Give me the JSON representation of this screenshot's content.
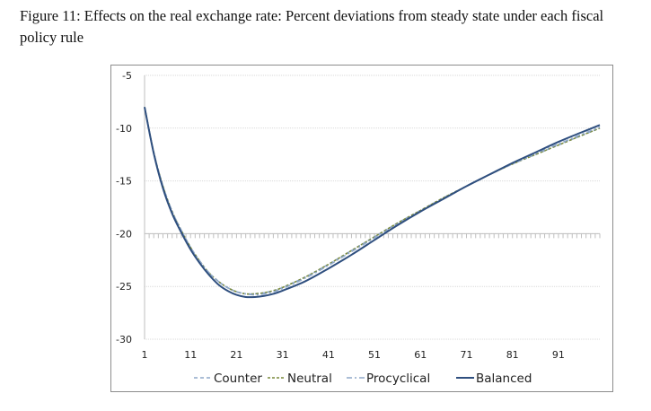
{
  "caption": {
    "line1": "Figure 11: Effects on the real exchange rate: Percent deviations from steady state under each fiscal",
    "line2": "policy rule"
  },
  "chart_data": {
    "type": "line",
    "title": "Effects on the real exchange rate: Percent deviations from steady state under each fiscal policy rule",
    "xlabel": "",
    "ylabel": "",
    "xlim": [
      1,
      100
    ],
    "ylim": [
      -30,
      -5
    ],
    "x_axis_crosses_at": -20,
    "x_ticks": [
      "1",
      "11",
      "21",
      "31",
      "41",
      "51",
      "61",
      "71",
      "81",
      "91"
    ],
    "y_ticks": [
      "-5",
      "-10",
      "-15",
      "-20",
      "-25",
      "-30"
    ],
    "grid": true,
    "legend_position": "bottom",
    "x": [
      1,
      3,
      5,
      7,
      9,
      11,
      13,
      15,
      17,
      19,
      21,
      23,
      25,
      27,
      29,
      31,
      36,
      41,
      46,
      51,
      56,
      61,
      66,
      71,
      76,
      81,
      86,
      91,
      96,
      100
    ],
    "series": [
      {
        "name": "Counter",
        "style": "dashed",
        "color": "#8fa8c8",
        "values": [
          -8.0,
          -12.3,
          -15.5,
          -17.9,
          -19.7,
          -21.3,
          -22.6,
          -23.7,
          -24.5,
          -25.1,
          -25.5,
          -25.7,
          -25.7,
          -25.6,
          -25.4,
          -25.1,
          -24.1,
          -22.9,
          -21.6,
          -20.3,
          -19.0,
          -17.8,
          -16.6,
          -15.5,
          -14.4,
          -13.4,
          -12.5,
          -11.6,
          -10.7,
          -10.0
        ]
      },
      {
        "name": "Neutral",
        "style": "dotted-dash",
        "color": "#7a8a3c",
        "values": [
          -8.0,
          -12.3,
          -15.5,
          -17.9,
          -19.7,
          -21.3,
          -22.6,
          -23.7,
          -24.5,
          -25.1,
          -25.5,
          -25.7,
          -25.7,
          -25.6,
          -25.4,
          -25.1,
          -24.1,
          -22.9,
          -21.6,
          -20.3,
          -19.0,
          -17.8,
          -16.6,
          -15.5,
          -14.4,
          -13.4,
          -12.5,
          -11.6,
          -10.7,
          -10.0
        ]
      },
      {
        "name": "Procyclical",
        "style": "dash-dot",
        "color": "#8fa8c8",
        "values": [
          -8.0,
          -12.3,
          -15.5,
          -17.9,
          -19.7,
          -21.3,
          -22.6,
          -23.7,
          -24.5,
          -25.1,
          -25.5,
          -25.7,
          -25.8,
          -25.7,
          -25.5,
          -25.2,
          -24.2,
          -23.0,
          -21.7,
          -20.4,
          -19.1,
          -17.9,
          -16.7,
          -15.5,
          -14.4,
          -13.4,
          -12.4,
          -11.5,
          -10.6,
          -9.9
        ]
      },
      {
        "name": "Balanced",
        "style": "solid",
        "color": "#2f4f7f",
        "values": [
          -8.0,
          -12.4,
          -15.7,
          -18.1,
          -19.9,
          -21.5,
          -22.8,
          -23.9,
          -24.8,
          -25.4,
          -25.8,
          -26.0,
          -26.0,
          -25.9,
          -25.7,
          -25.4,
          -24.5,
          -23.3,
          -22.0,
          -20.6,
          -19.2,
          -17.9,
          -16.7,
          -15.5,
          -14.4,
          -13.3,
          -12.3,
          -11.3,
          -10.4,
          -9.7
        ]
      }
    ]
  }
}
